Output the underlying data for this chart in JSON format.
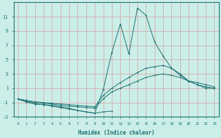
{
  "xlabel": "Humidex (Indice chaleur)",
  "bg_color": "#cceee8",
  "line_color": "#1a7070",
  "grid_color_minor": "#e8d0d0",
  "grid_color_major": "#c8b8b8",
  "ylim": [
    -3,
    13
  ],
  "xlim": [
    -0.5,
    23.5
  ],
  "yticks": [
    -3,
    -1,
    1,
    3,
    5,
    7,
    9,
    11
  ],
  "xticks": [
    0,
    1,
    2,
    3,
    4,
    5,
    6,
    7,
    8,
    9,
    10,
    11,
    12,
    13,
    14,
    15,
    16,
    17,
    18,
    19,
    20,
    21,
    22,
    23
  ],
  "line1_x": [
    0,
    1,
    2,
    3,
    4,
    5,
    6,
    7,
    8,
    9,
    10,
    11
  ],
  "line1_y": [
    -0.5,
    -0.9,
    -1.2,
    -1.3,
    -1.5,
    -1.7,
    -1.9,
    -2.1,
    -2.3,
    -2.5,
    -2.3,
    -2.2
  ],
  "line2_x": [
    0,
    1,
    2,
    3,
    4,
    5,
    6,
    7,
    8,
    9,
    10,
    11,
    12,
    13,
    14,
    15,
    16,
    17,
    18,
    19,
    20,
    21,
    22,
    23
  ],
  "line2_y": [
    -0.5,
    -0.8,
    -1.0,
    -1.1,
    -1.2,
    -1.4,
    -1.5,
    -1.6,
    -1.7,
    -1.8,
    -0.5,
    0.5,
    1.0,
    1.5,
    2.0,
    2.5,
    2.8,
    3.0,
    2.8,
    2.5,
    2.0,
    1.8,
    1.5,
    1.2
  ],
  "line3_x": [
    0,
    1,
    2,
    3,
    4,
    5,
    6,
    7,
    8,
    9,
    10,
    11,
    12,
    13,
    14,
    15,
    16,
    17,
    18,
    19,
    20,
    21,
    22,
    23
  ],
  "line3_y": [
    -0.5,
    -0.7,
    -0.9,
    -1.0,
    -1.1,
    -1.2,
    -1.3,
    -1.4,
    -1.5,
    -1.6,
    0.0,
    1.0,
    1.8,
    2.5,
    3.2,
    3.8,
    4.0,
    4.2,
    3.8,
    3.0,
    2.0,
    1.5,
    1.2,
    1.0
  ],
  "line4_x": [
    0,
    1,
    2,
    3,
    4,
    5,
    6,
    7,
    8,
    9,
    10,
    11,
    12,
    13,
    14,
    15,
    16,
    17,
    18,
    19,
    20,
    21,
    22,
    23
  ],
  "line4_y": [
    -0.5,
    -0.9,
    -1.2,
    -1.3,
    -1.4,
    -1.6,
    -1.8,
    -2.1,
    -2.3,
    -2.5,
    0.8,
    6.0,
    10.0,
    5.8,
    12.2,
    11.2,
    7.5,
    5.5,
    3.8,
    2.8,
    2.0,
    1.5,
    1.0,
    1.0
  ]
}
